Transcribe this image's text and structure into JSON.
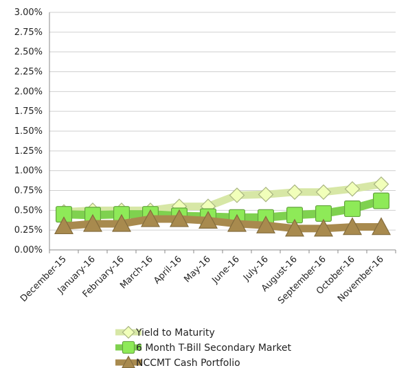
{
  "chart_data": {
    "type": "line",
    "categories": [
      "December-15",
      "January-16",
      "February-16",
      "March-16",
      "April-16",
      "May-16",
      "June-16",
      "July-16",
      "August-16",
      "September-16",
      "October-16",
      "November-16"
    ],
    "ylim": [
      0,
      3.0
    ],
    "y_ticks": [
      "0.00%",
      "0.25%",
      "0.50%",
      "0.75%",
      "1.00%",
      "1.25%",
      "1.50%",
      "1.75%",
      "2.00%",
      "2.25%",
      "2.50%",
      "2.75%",
      "3.00%"
    ],
    "grid": true,
    "legend_position": "bottom",
    "series": [
      {
        "name": "Yield to Maturity",
        "values": [
          0.48,
          0.5,
          0.5,
          0.5,
          0.55,
          0.55,
          0.69,
          0.7,
          0.73,
          0.73,
          0.77,
          0.83
        ],
        "color": "#d7e7a6",
        "marker": "diamond"
      },
      {
        "name": "6 Month T-Bill Secondary Market",
        "values": [
          0.45,
          0.44,
          0.45,
          0.45,
          0.43,
          0.42,
          0.41,
          0.41,
          0.44,
          0.46,
          0.52,
          0.62
        ],
        "color": "#7fd14f",
        "marker": "square"
      },
      {
        "name": "NCCMT Cash Portfolio",
        "values": [
          0.3,
          0.33,
          0.33,
          0.39,
          0.39,
          0.37,
          0.33,
          0.31,
          0.27,
          0.27,
          0.29,
          0.29
        ],
        "color": "#a88a4e",
        "marker": "triangle"
      }
    ]
  }
}
